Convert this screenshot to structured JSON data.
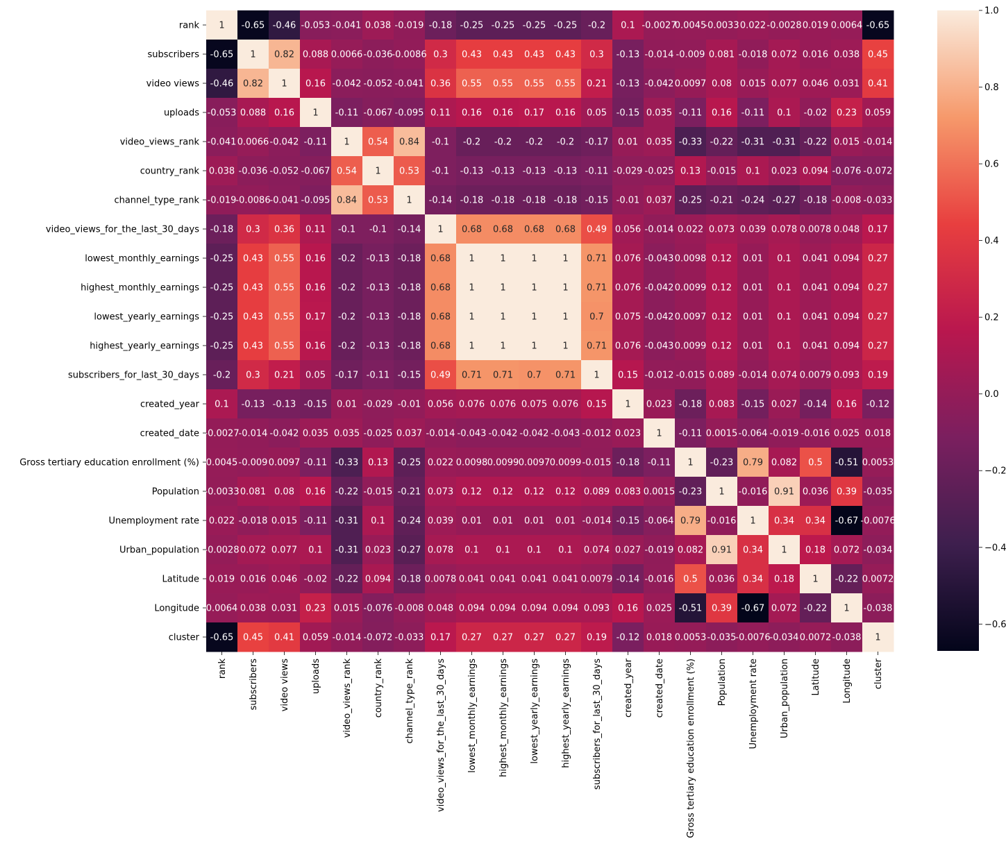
{
  "chart_data": {
    "type": "heatmap",
    "title": "",
    "xlabel": "",
    "ylabel": "",
    "labels": [
      "rank",
      "subscribers",
      "video views",
      "uploads",
      "video_views_rank",
      "country_rank",
      "channel_type_rank",
      "video_views_for_the_last_30_days",
      "lowest_monthly_earnings",
      "highest_monthly_earnings",
      "lowest_yearly_earnings",
      "highest_yearly_earnings",
      "subscribers_for_last_30_days",
      "created_year",
      "created_date",
      "Gross tertiary education enrollment (%)",
      "Population",
      "Unemployment rate",
      "Urban_population",
      "Latitude",
      "Longitude",
      "cluster"
    ],
    "values": [
      [
        "1",
        "-0.65",
        "-0.46",
        "-0.053",
        "-0.041",
        "0.038",
        "-0.019",
        "-0.18",
        "-0.25",
        "-0.25",
        "-0.25",
        "-0.25",
        "-0.2",
        "0.1",
        "-0.0027",
        "0.0045",
        "-0.0033",
        "0.022",
        "-0.0028",
        "0.019",
        "0.0064",
        "-0.65"
      ],
      [
        "-0.65",
        "1",
        "0.82",
        "0.088",
        "0.0066",
        "-0.036",
        "-0.0086",
        "0.3",
        "0.43",
        "0.43",
        "0.43",
        "0.43",
        "0.3",
        "-0.13",
        "-0.014",
        "-0.009",
        "0.081",
        "-0.018",
        "0.072",
        "0.016",
        "0.038",
        "0.45"
      ],
      [
        "-0.46",
        "0.82",
        "1",
        "0.16",
        "-0.042",
        "-0.052",
        "-0.041",
        "0.36",
        "0.55",
        "0.55",
        "0.55",
        "0.55",
        "0.21",
        "-0.13",
        "-0.042",
        "0.0097",
        "0.08",
        "0.015",
        "0.077",
        "0.046",
        "0.031",
        "0.41"
      ],
      [
        "-0.053",
        "0.088",
        "0.16",
        "1",
        "-0.11",
        "-0.067",
        "-0.095",
        "0.11",
        "0.16",
        "0.16",
        "0.17",
        "0.16",
        "0.05",
        "-0.15",
        "0.035",
        "-0.11",
        "0.16",
        "-0.11",
        "0.1",
        "-0.02",
        "0.23",
        "0.059"
      ],
      [
        "-0.041",
        "0.0066",
        "-0.042",
        "-0.11",
        "1",
        "0.54",
        "0.84",
        "-0.1",
        "-0.2",
        "-0.2",
        "-0.2",
        "-0.2",
        "-0.17",
        "0.01",
        "0.035",
        "-0.33",
        "-0.22",
        "-0.31",
        "-0.31",
        "-0.22",
        "0.015",
        "-0.014"
      ],
      [
        "0.038",
        "-0.036",
        "-0.052",
        "-0.067",
        "0.54",
        "1",
        "0.53",
        "-0.1",
        "-0.13",
        "-0.13",
        "-0.13",
        "-0.13",
        "-0.11",
        "-0.029",
        "-0.025",
        "0.13",
        "-0.015",
        "0.1",
        "0.023",
        "0.094",
        "-0.076",
        "-0.072"
      ],
      [
        "-0.019",
        "-0.0086",
        "-0.041",
        "-0.095",
        "0.84",
        "0.53",
        "1",
        "-0.14",
        "-0.18",
        "-0.18",
        "-0.18",
        "-0.18",
        "-0.15",
        "-0.01",
        "0.037",
        "-0.25",
        "-0.21",
        "-0.24",
        "-0.27",
        "-0.18",
        "-0.008",
        "-0.033"
      ],
      [
        "-0.18",
        "0.3",
        "0.36",
        "0.11",
        "-0.1",
        "-0.1",
        "-0.14",
        "1",
        "0.68",
        "0.68",
        "0.68",
        "0.68",
        "0.49",
        "0.056",
        "-0.014",
        "0.022",
        "0.073",
        "0.039",
        "0.078",
        "0.0078",
        "0.048",
        "0.17"
      ],
      [
        "-0.25",
        "0.43",
        "0.55",
        "0.16",
        "-0.2",
        "-0.13",
        "-0.18",
        "0.68",
        "1",
        "1",
        "1",
        "1",
        "0.71",
        "0.076",
        "-0.043",
        "0.0098",
        "0.12",
        "0.01",
        "0.1",
        "0.041",
        "0.094",
        "0.27"
      ],
      [
        "-0.25",
        "0.43",
        "0.55",
        "0.16",
        "-0.2",
        "-0.13",
        "-0.18",
        "0.68",
        "1",
        "1",
        "1",
        "1",
        "0.71",
        "0.076",
        "-0.042",
        "0.0099",
        "0.12",
        "0.01",
        "0.1",
        "0.041",
        "0.094",
        "0.27"
      ],
      [
        "-0.25",
        "0.43",
        "0.55",
        "0.17",
        "-0.2",
        "-0.13",
        "-0.18",
        "0.68",
        "1",
        "1",
        "1",
        "1",
        "0.7",
        "0.075",
        "-0.042",
        "0.0097",
        "0.12",
        "0.01",
        "0.1",
        "0.041",
        "0.094",
        "0.27"
      ],
      [
        "-0.25",
        "0.43",
        "0.55",
        "0.16",
        "-0.2",
        "-0.13",
        "-0.18",
        "0.68",
        "1",
        "1",
        "1",
        "1",
        "0.71",
        "0.076",
        "-0.043",
        "0.0099",
        "0.12",
        "0.01",
        "0.1",
        "0.041",
        "0.094",
        "0.27"
      ],
      [
        "-0.2",
        "0.3",
        "0.21",
        "0.05",
        "-0.17",
        "-0.11",
        "-0.15",
        "0.49",
        "0.71",
        "0.71",
        "0.7",
        "0.71",
        "1",
        "0.15",
        "-0.012",
        "-0.015",
        "0.089",
        "-0.014",
        "0.074",
        "0.0079",
        "0.093",
        "0.19"
      ],
      [
        "0.1",
        "-0.13",
        "-0.13",
        "-0.15",
        "0.01",
        "-0.029",
        "-0.01",
        "0.056",
        "0.076",
        "0.076",
        "0.075",
        "0.076",
        "0.15",
        "1",
        "0.023",
        "-0.18",
        "0.083",
        "-0.15",
        "0.027",
        "-0.14",
        "0.16",
        "-0.12"
      ],
      [
        "-0.0027",
        "-0.014",
        "-0.042",
        "0.035",
        "0.035",
        "-0.025",
        "0.037",
        "-0.014",
        "-0.043",
        "-0.042",
        "-0.042",
        "-0.043",
        "-0.012",
        "0.023",
        "1",
        "-0.11",
        "0.0015",
        "-0.064",
        "-0.019",
        "-0.016",
        "0.025",
        "0.018"
      ],
      [
        "0.0045",
        "-0.009",
        "0.0097",
        "-0.11",
        "-0.33",
        "0.13",
        "-0.25",
        "0.022",
        "0.0098",
        "0.0099",
        "0.0097",
        "0.0099",
        "-0.015",
        "-0.18",
        "-0.11",
        "1",
        "-0.23",
        "0.79",
        "0.082",
        "0.5",
        "-0.51",
        "0.0053"
      ],
      [
        "-0.0033",
        "0.081",
        "0.08",
        "0.16",
        "-0.22",
        "-0.015",
        "-0.21",
        "0.073",
        "0.12",
        "0.12",
        "0.12",
        "0.12",
        "0.089",
        "0.083",
        "0.0015",
        "-0.23",
        "1",
        "-0.016",
        "0.91",
        "0.036",
        "0.39",
        "-0.035"
      ],
      [
        "0.022",
        "-0.018",
        "0.015",
        "-0.11",
        "-0.31",
        "0.1",
        "-0.24",
        "0.039",
        "0.01",
        "0.01",
        "0.01",
        "0.01",
        "-0.014",
        "-0.15",
        "-0.064",
        "0.79",
        "-0.016",
        "1",
        "0.34",
        "0.34",
        "-0.67",
        "-0.0076"
      ],
      [
        "-0.0028",
        "0.072",
        "0.077",
        "0.1",
        "-0.31",
        "0.023",
        "-0.27",
        "0.078",
        "0.1",
        "0.1",
        "0.1",
        "0.1",
        "0.074",
        "0.027",
        "-0.019",
        "0.082",
        "0.91",
        "0.34",
        "1",
        "0.18",
        "0.072",
        "-0.034"
      ],
      [
        "0.019",
        "0.016",
        "0.046",
        "-0.02",
        "-0.22",
        "0.094",
        "-0.18",
        "0.0078",
        "0.041",
        "0.041",
        "0.041",
        "0.041",
        "0.0079",
        "-0.14",
        "-0.016",
        "0.5",
        "0.036",
        "0.34",
        "0.18",
        "1",
        "-0.22",
        "0.0072"
      ],
      [
        "0.0064",
        "0.038",
        "0.031",
        "0.23",
        "0.015",
        "-0.076",
        "-0.008",
        "0.048",
        "0.094",
        "0.094",
        "0.094",
        "0.094",
        "0.093",
        "0.16",
        "0.025",
        "-0.51",
        "0.39",
        "-0.67",
        "0.072",
        "-0.22",
        "1",
        "-0.038"
      ],
      [
        "-0.65",
        "0.45",
        "0.41",
        "0.059",
        "-0.014",
        "-0.072",
        "-0.033",
        "0.17",
        "0.27",
        "0.27",
        "0.27",
        "0.27",
        "0.19",
        "-0.12",
        "0.018",
        "0.0053",
        "-0.035",
        "-0.0076",
        "-0.034",
        "0.0072",
        "-0.038",
        "1"
      ]
    ],
    "colorbar": {
      "min": -0.67,
      "max": 1,
      "ticks": [
        "-0.6",
        "-0.4",
        "-0.2",
        "0.0",
        "0.2",
        "0.4",
        "0.6",
        "0.8",
        "1.0"
      ],
      "colormap": "rocket",
      "stops": [
        "#03051a",
        "#3e1f4e",
        "#7b1f5f",
        "#b9174e",
        "#e83f3f",
        "#f6996b",
        "#faebdd"
      ]
    }
  }
}
